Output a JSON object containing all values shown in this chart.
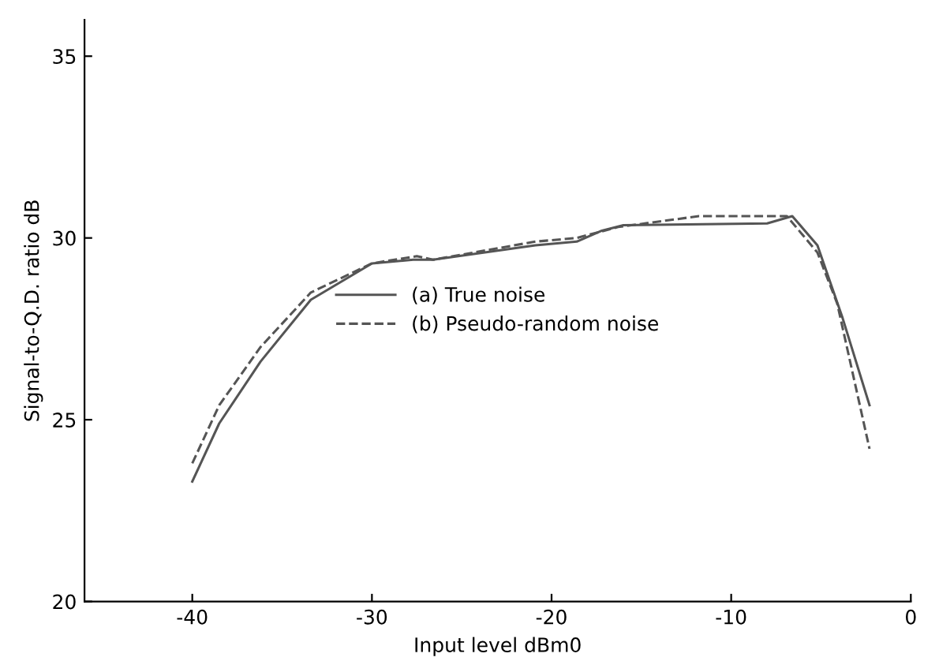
{
  "chart_data": {
    "type": "line",
    "xlabel": "Input level dBm0",
    "ylabel": "Signal-to-Q.D. ratio dB",
    "xlim": [
      -46,
      0
    ],
    "ylim": [
      20,
      36
    ],
    "xticks": [
      -40,
      -30,
      -20,
      -10,
      0
    ],
    "yticks": [
      20,
      25,
      30,
      35
    ],
    "grid": false,
    "legend": "center",
    "marker": "none",
    "series": [
      {
        "name": "(a) True noise",
        "color": "#555555",
        "line_style": "solid",
        "x": [
          -40,
          -38.5,
          -36.2,
          -33.4,
          -30,
          -27.7,
          -26.6,
          -20.9,
          -18.6,
          -17.2,
          -16,
          -8,
          -6.6,
          -5.2,
          -3.8,
          -2.3
        ],
        "values": [
          23.3,
          24.9,
          26.6,
          28.3,
          29.3,
          29.4,
          29.4,
          29.8,
          29.9,
          30.2,
          30.35,
          30.4,
          30.6,
          29.8,
          27.8,
          25.4
        ]
      },
      {
        "name": "(b) Pseudo-random noise",
        "color": "#555555",
        "line_style": "dashed",
        "x": [
          -40,
          -38.5,
          -36.2,
          -33.4,
          -30,
          -27.5,
          -26.6,
          -20.9,
          -18.6,
          -16.3,
          -11.8,
          -6.9,
          -5.2,
          -4.1,
          -2.3
        ],
        "values": [
          23.8,
          25.4,
          27.0,
          28.5,
          29.3,
          29.5,
          29.4,
          29.9,
          30.0,
          30.3,
          30.6,
          30.6,
          29.6,
          28.2,
          24.2
        ]
      }
    ]
  }
}
